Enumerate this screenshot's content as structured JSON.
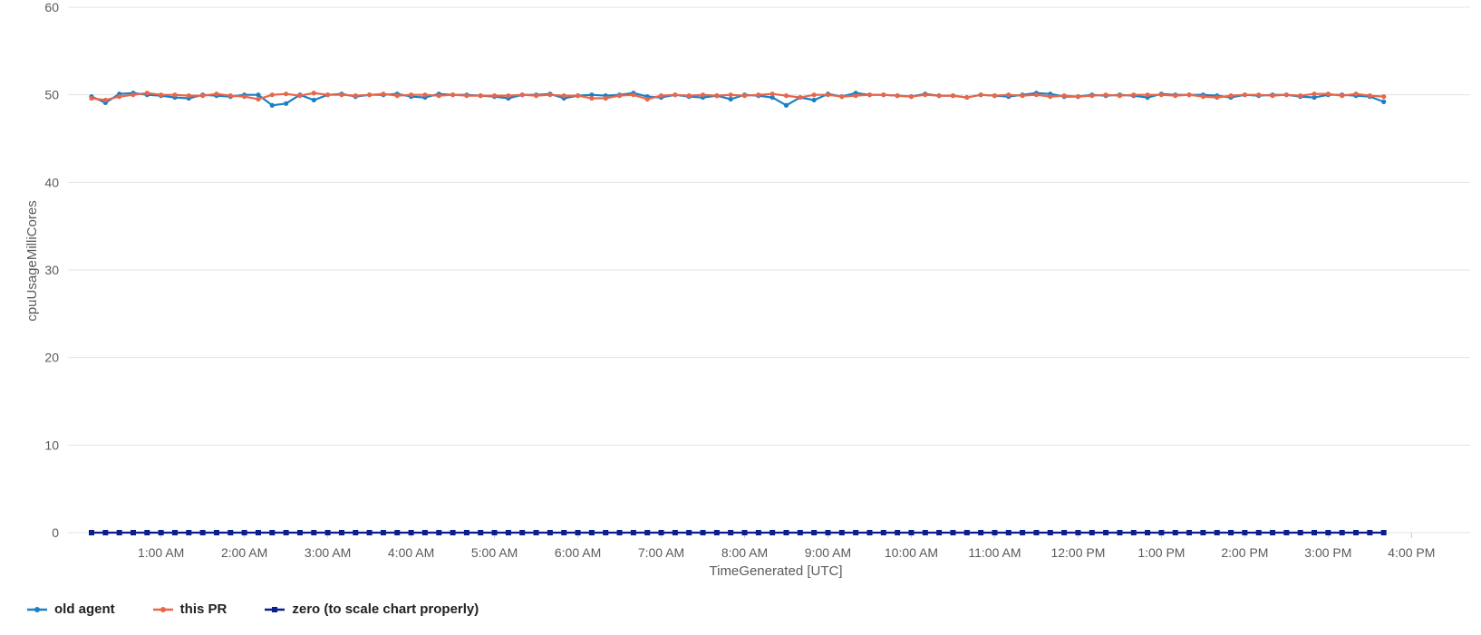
{
  "chart_data": {
    "type": "line",
    "xlabel": "TimeGenerated [UTC]",
    "ylabel": "cpuUsageMilliCores",
    "ylim": [
      0,
      60
    ],
    "yticks": [
      "0",
      "10",
      "20",
      "30",
      "40",
      "50",
      "60"
    ],
    "x_start": "00:10",
    "x_step_minutes": 10,
    "x_tick_labels": [
      "1:00 AM",
      "2:00 AM",
      "3:00 AM",
      "4:00 AM",
      "5:00 AM",
      "6:00 AM",
      "7:00 AM",
      "8:00 AM",
      "9:00 AM",
      "10:00 AM",
      "11:00 AM",
      "12:00 PM",
      "1:00 PM",
      "2:00 PM",
      "3:00 PM",
      "4:00 PM"
    ],
    "grid": true,
    "legend_position": "bottom-left",
    "series": [
      {
        "name": "old agent",
        "color": "#1b7fc4",
        "values": [
          49.8,
          49.1,
          50.1,
          50.2,
          50.0,
          49.9,
          49.7,
          49.6,
          50.0,
          49.9,
          49.8,
          50.0,
          50.0,
          48.8,
          49.0,
          50.0,
          49.4,
          50.0,
          50.1,
          49.8,
          50.0,
          50.0,
          50.1,
          49.8,
          49.7,
          50.1,
          50.0,
          50.0,
          49.9,
          49.8,
          49.6,
          50.0,
          50.0,
          50.1,
          49.6,
          49.9,
          50.0,
          49.9,
          50.0,
          50.2,
          49.8,
          49.7,
          50.0,
          49.8,
          49.7,
          49.9,
          49.5,
          50.0,
          49.9,
          49.7,
          48.8,
          49.7,
          49.4,
          50.1,
          49.8,
          50.2,
          50.0,
          50.0,
          49.9,
          49.8,
          50.1,
          49.9,
          49.9,
          49.7,
          50.0,
          49.9,
          49.8,
          50.0,
          50.2,
          50.1,
          49.8,
          49.8,
          50.0,
          49.9,
          50.0,
          49.9,
          49.7,
          50.1,
          50.0,
          50.0,
          50.0,
          49.9,
          49.7,
          50.0,
          49.9,
          50.0,
          50.0,
          49.8,
          49.7,
          50.0,
          50.0,
          49.9,
          49.8,
          49.2
        ],
        "marker": "dot"
      },
      {
        "name": "this PR",
        "color": "#e8664a",
        "values": [
          49.6,
          49.4,
          49.8,
          50.0,
          50.2,
          50.0,
          50.0,
          49.9,
          49.9,
          50.1,
          49.9,
          49.8,
          49.5,
          50.0,
          50.1,
          49.9,
          50.2,
          50.0,
          50.0,
          49.9,
          50.0,
          50.1,
          49.9,
          50.0,
          50.0,
          49.9,
          50.0,
          49.9,
          49.9,
          49.9,
          49.9,
          50.0,
          49.9,
          50.0,
          49.9,
          49.9,
          49.6,
          49.6,
          49.9,
          50.0,
          49.5,
          49.9,
          50.0,
          49.9,
          50.0,
          49.9,
          50.0,
          49.9,
          50.0,
          50.1,
          49.9,
          49.7,
          50.0,
          50.0,
          49.8,
          49.9,
          50.0,
          50.0,
          49.9,
          49.8,
          50.0,
          49.9,
          49.9,
          49.7,
          50.0,
          49.9,
          50.0,
          49.9,
          50.0,
          49.8,
          49.9,
          49.8,
          49.9,
          50.0,
          49.9,
          50.0,
          50.0,
          50.0,
          49.9,
          50.0,
          49.8,
          49.7,
          49.9,
          50.0,
          50.0,
          49.9,
          50.0,
          49.9,
          50.1,
          50.1,
          49.9,
          50.1,
          49.9,
          49.8
        ],
        "marker": "dot"
      },
      {
        "name": "zero (to scale chart properly)",
        "color": "#0b1f8c",
        "constant_value": 0,
        "marker": "square"
      }
    ]
  }
}
